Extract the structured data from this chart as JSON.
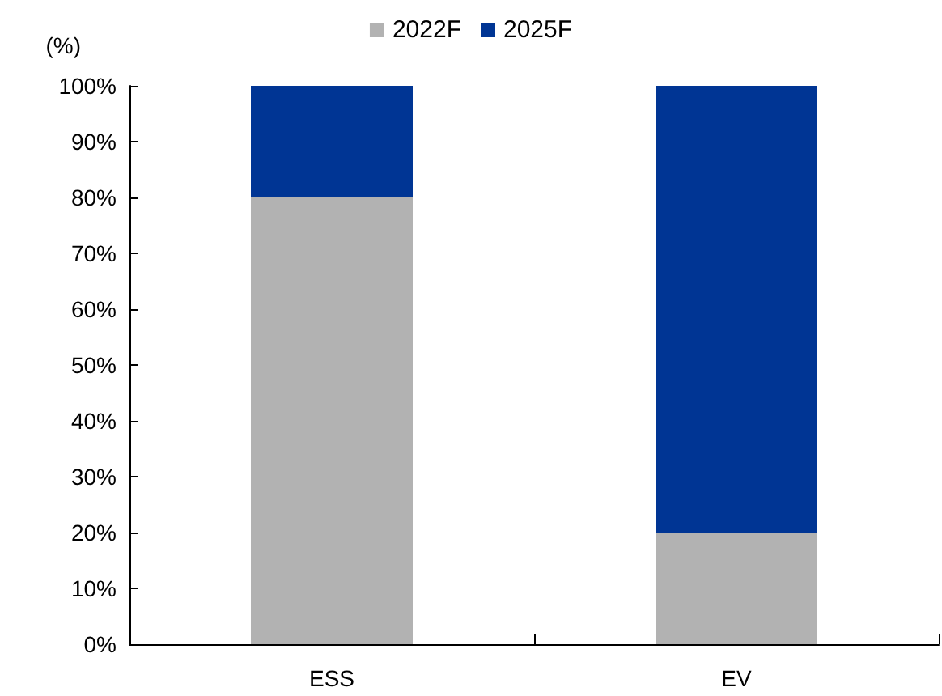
{
  "chart_data": {
    "type": "bar",
    "stacked": true,
    "ylabel": "(%)",
    "categories": [
      "ESS",
      "EV"
    ],
    "series": [
      {
        "name": "2022F",
        "color": "#b2b2b2",
        "values": [
          80,
          20
        ]
      },
      {
        "name": "2025F",
        "color": "#003594",
        "values": [
          20,
          80
        ]
      }
    ],
    "ylim": [
      0,
      100
    ],
    "yticks": [
      {
        "value": 0,
        "label": "0%"
      },
      {
        "value": 10,
        "label": "10%"
      },
      {
        "value": 20,
        "label": "20%"
      },
      {
        "value": 30,
        "label": "30%"
      },
      {
        "value": 40,
        "label": "40%"
      },
      {
        "value": 50,
        "label": "50%"
      },
      {
        "value": 60,
        "label": "60%"
      },
      {
        "value": 70,
        "label": "70%"
      },
      {
        "value": 80,
        "label": "80%"
      },
      {
        "value": 90,
        "label": "90%"
      },
      {
        "value": 100,
        "label": "100%"
      }
    ],
    "legend": "top",
    "grid": false
  }
}
